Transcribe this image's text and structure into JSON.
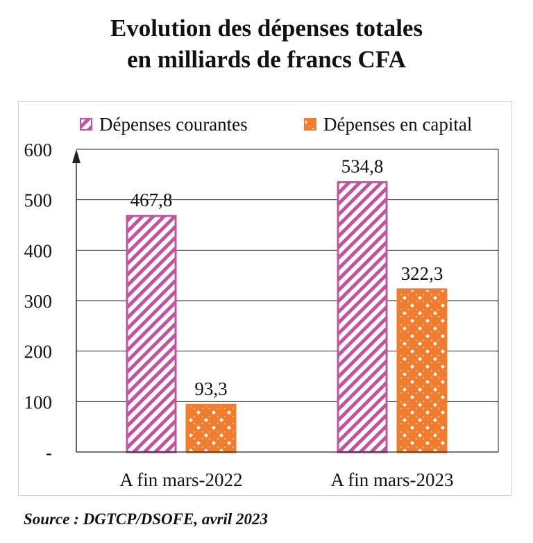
{
  "title": {
    "line1": "Evolution des dépenses totales",
    "line2": "en milliards de francs CFA"
  },
  "source": "Source : DGTCP/DSOFE, avril 2023",
  "colors": {
    "courantes": "#c0549e",
    "capital": "#f07d2e",
    "grid": "#222222",
    "frame": "#cfcfcf"
  },
  "chart_data": {
    "type": "bar",
    "title": "Evolution des dépenses totales en milliards de francs CFA",
    "categories": [
      "A fin mars-2022",
      "A fin mars-2023"
    ],
    "series": [
      {
        "name": "Dépenses courantes",
        "values": [
          467.8,
          534.8
        ],
        "labels": [
          "467,8",
          "534,8"
        ]
      },
      {
        "name": "Dépenses en capital",
        "values": [
          93.3,
          322.3
        ],
        "labels": [
          "93,3",
          "322,3"
        ]
      }
    ],
    "ylim": [
      0,
      600
    ],
    "yticks": [
      0,
      100,
      200,
      300,
      400,
      500,
      600
    ],
    "ytick_labels": [
      "-",
      "100",
      "200",
      "300",
      "400",
      "500",
      "600"
    ],
    "grid": true,
    "legend": "top"
  }
}
